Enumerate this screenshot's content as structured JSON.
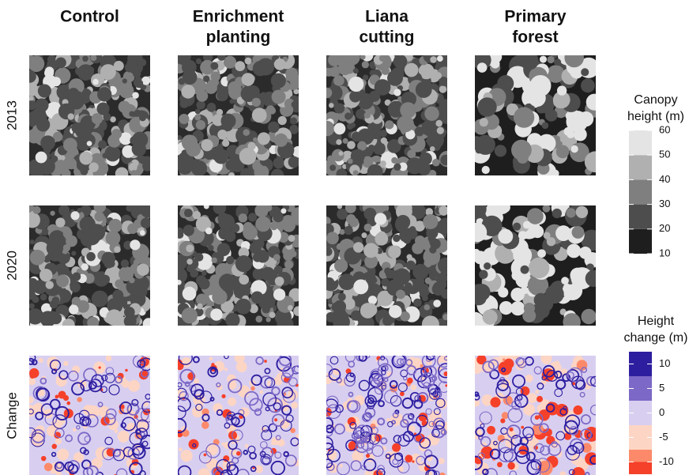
{
  "columns": [
    [
      "Control"
    ],
    [
      "Enrichment",
      "planting"
    ],
    [
      "Liana",
      "cutting"
    ],
    [
      "Primary",
      "forest"
    ]
  ],
  "rows": [
    "2013",
    "2020",
    "Change"
  ],
  "legends": {
    "canopy": {
      "title": [
        "Canopy",
        "height (m)"
      ],
      "lim": [
        10,
        60
      ],
      "ticks": [
        10,
        20,
        30,
        40,
        50,
        60
      ],
      "breaks": [
        10,
        20,
        30,
        40,
        50,
        60
      ],
      "colors": [
        "#1e1e1e",
        "#4d4d4d",
        "#7f7f7f",
        "#b0b0b0",
        "#e4e4e4"
      ]
    },
    "change": {
      "title": [
        "Height",
        "change (m)"
      ],
      "lim": [
        -12.5,
        12.5
      ],
      "ticks": [
        -10,
        -5,
        0,
        5,
        10
      ],
      "breaks": [
        -12.5,
        -10,
        -7.5,
        -2.5,
        2.5,
        7.5,
        12.5
      ],
      "colors": [
        "#f5402a",
        "#fc8a6a",
        "#fdd5c4",
        "#d8cff0",
        "#7c68c6",
        "#2d1ea0"
      ]
    }
  }
}
